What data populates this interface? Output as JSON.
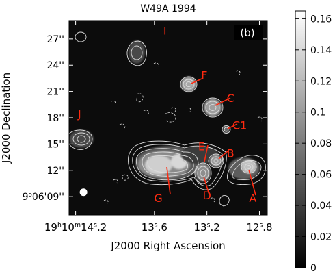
{
  "chart_data": {
    "type": "heatmap",
    "title": "W49A 1994",
    "panel_label": "(b)",
    "xlabel": "J2000 Right Ascension",
    "ylabel": "J2000 Declination",
    "x_ticks": [
      {
        "value": 14.2,
        "label_parts": [
          "19",
          "h",
          "10",
          "m",
          "14",
          "s",
          ".2"
        ]
      },
      {
        "value": 13.6,
        "label_parts": [
          "13",
          "s",
          ".6"
        ]
      },
      {
        "value": 13.2,
        "label_parts": [
          "13",
          "s",
          ".2"
        ]
      },
      {
        "value": 12.8,
        "label_parts": [
          "12",
          "s",
          ".8"
        ]
      }
    ],
    "y_ticks": [
      {
        "value": 27,
        "label": "27''"
      },
      {
        "value": 24,
        "label": "24''"
      },
      {
        "value": 21,
        "label": "21''"
      },
      {
        "value": 18,
        "label": "18''"
      },
      {
        "value": 15,
        "label": "15''"
      },
      {
        "value": 12,
        "label": "12''"
      },
      {
        "value": 9,
        "label_parts": [
          "9",
          "o",
          "06'09''"
        ]
      }
    ],
    "xlim": [
      14.25,
      12.74
    ],
    "ylim": [
      6.9,
      29.1
    ],
    "colorbar": {
      "min": 0,
      "max": 0.165,
      "ticks": [
        "0",
        "0.02",
        "0.04",
        "0.06",
        "0.08",
        "0.1",
        "0.12",
        "0.14",
        "0.16"
      ]
    },
    "sources": [
      {
        "name": "I",
        "ra": 13.5,
        "dec": 25.1,
        "peak": 0.05,
        "radius": 0.9,
        "label_ra": 13.52,
        "label_dec": 27.5
      },
      {
        "name": "F",
        "ra": 13.37,
        "dec": 21.3,
        "peak": 0.1,
        "radius": 0.7,
        "label_ra": 13.22,
        "label_dec": 22.4
      },
      {
        "name": "C",
        "ra": 13.2,
        "dec": 18.7,
        "peak": 0.1,
        "radius": 0.8,
        "label_ra": 13.02,
        "label_dec": 19.8
      },
      {
        "name": "C1",
        "ra": 13.05,
        "dec": 16.1,
        "peak": 0.03,
        "radius": 0.3,
        "label_ra": 12.95,
        "label_dec": 16.7
      },
      {
        "name": "J",
        "ra": 14.17,
        "dec": 15.2,
        "peak": 0.05,
        "radius": 1.0,
        "label_ra": 14.17,
        "label_dec": 18.0
      },
      {
        "name": "E",
        "ra": 13.25,
        "dec": 12.3,
        "peak": 0.04,
        "radius": 0.5,
        "label_ra": 13.24,
        "label_dec": 14.3
      },
      {
        "name": "B",
        "ra": 13.14,
        "dec": 12.8,
        "peak": 0.09,
        "radius": 0.6,
        "label_ra": 13.02,
        "label_dec": 13.5
      },
      {
        "name": "D",
        "ra": 13.24,
        "dec": 11.6,
        "peak": 0.1,
        "radius": 0.6,
        "label_ra": 13.2,
        "label_dec": 8.7
      },
      {
        "name": "A",
        "ra": 12.89,
        "dec": 11.9,
        "peak": 0.12,
        "radius": 0.8,
        "label_ra": 12.85,
        "label_dec": 8.4
      },
      {
        "name": "G",
        "ra": 13.55,
        "dec": 12.4,
        "peak": 0.16,
        "radius": 1.6,
        "label_ra": 13.57,
        "label_dec": 8.4
      }
    ],
    "beam": {
      "ra": 14.14,
      "dec": 9.5
    }
  },
  "colors": {
    "label": "#ff2a10",
    "contour": "#dcdcdc",
    "background": "#0c0c0c"
  }
}
